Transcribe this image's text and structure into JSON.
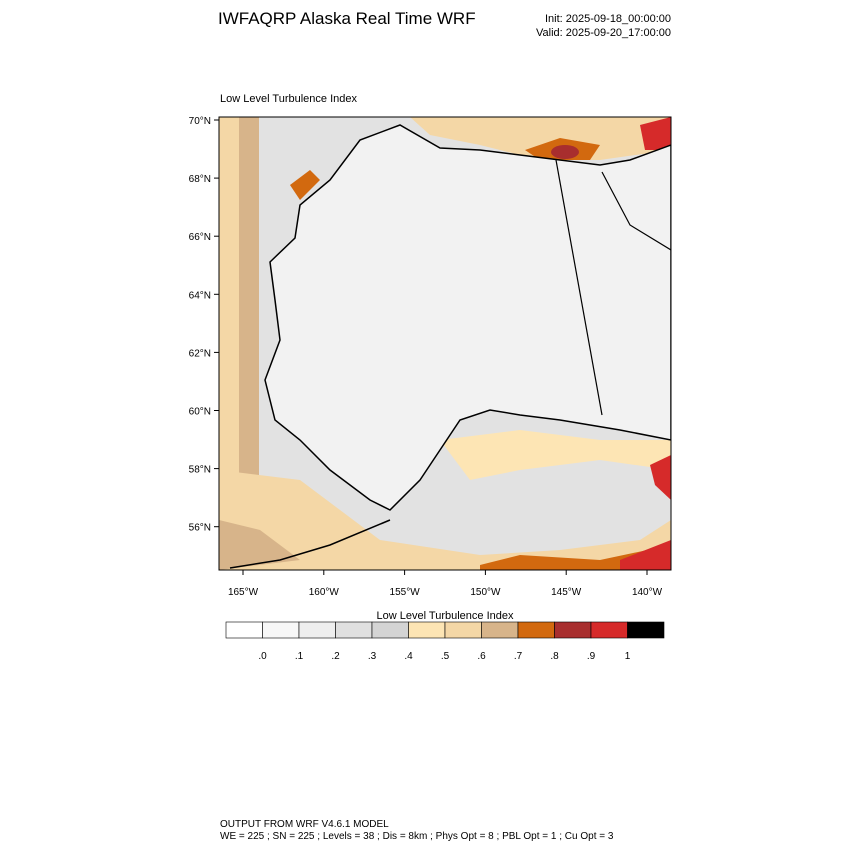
{
  "header": {
    "title": "IWFAQRP Alaska Real Time WRF",
    "init": "Init: 2025-09-18_00:00:00",
    "valid": "Valid: 2025-09-20_17:00:00"
  },
  "map": {
    "title": "Low Level Turbulence Index",
    "lat_labels": [
      "70°N",
      "68°N",
      "66°N",
      "64°N",
      "62°N",
      "60°N",
      "58°N",
      "56°N"
    ],
    "lon_labels": [
      "165°W",
      "160°W",
      "155°W",
      "150°W",
      "145°W",
      "140°W"
    ]
  },
  "colorbar": {
    "title": "Low Level Turbulence Index",
    "colors": [
      "#ffffff",
      "#f7f7f7",
      "#efefef",
      "#e0e0e0",
      "#d4d4d4",
      "#fde5b4",
      "#f4d7a6",
      "#d7b48a",
      "#d2690f",
      "#a82e2e",
      "#d62a2a",
      "#000000"
    ],
    "labels": [
      ".0",
      ".1",
      ".2",
      ".3",
      ".4",
      ".5",
      ".6",
      ".7",
      ".8",
      ".9",
      "1"
    ]
  },
  "footer": {
    "line1": "OUTPUT FROM WRF V4.6.1 MODEL",
    "line2": "WE = 225 ; SN = 225 ; Levels = 38 ; Dis = 8km ; Phys Opt = 8 ; PBL Opt = 1 ; Cu Opt = 3"
  }
}
